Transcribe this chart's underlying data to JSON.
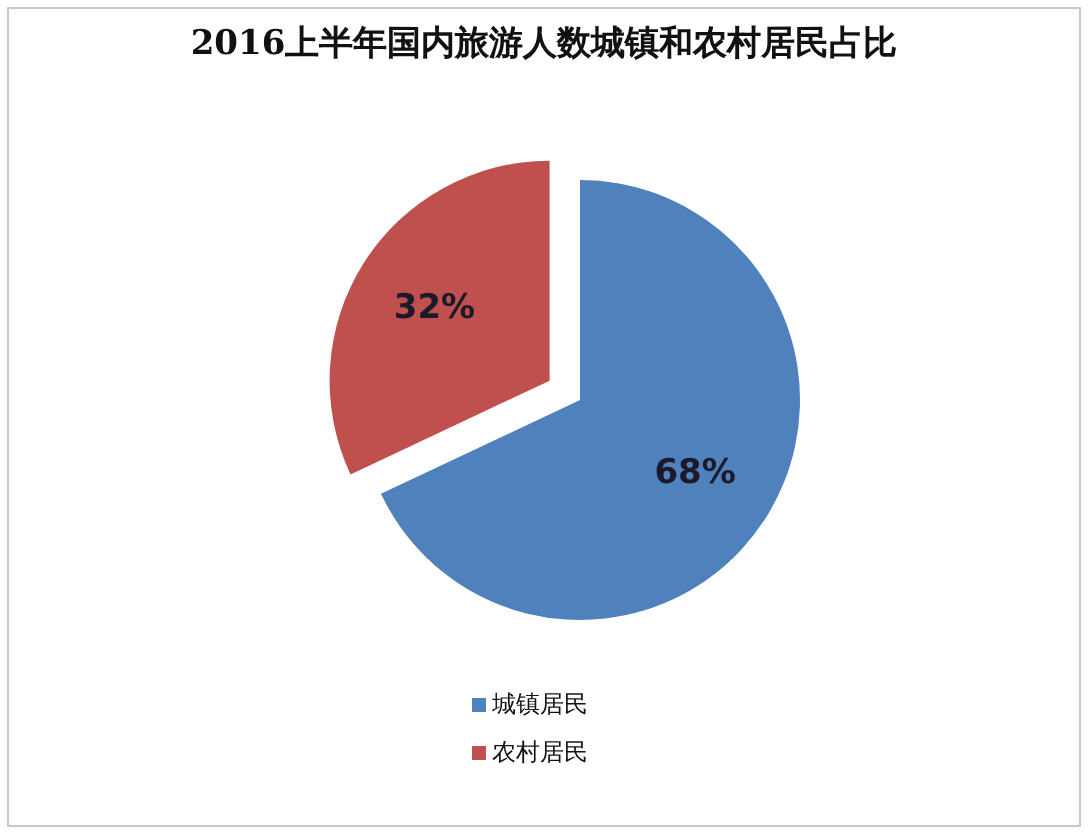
{
  "chart_data": {
    "type": "pie",
    "title": "2016上半年国内旅游人数城镇和农村居民占比",
    "categories": [
      "城镇居民",
      "农村居民"
    ],
    "values": [
      68,
      32
    ],
    "colors": [
      "#4f81bd",
      "#c0504d"
    ],
    "value_labels": [
      "68%",
      "32%"
    ],
    "legend": "bottom"
  }
}
